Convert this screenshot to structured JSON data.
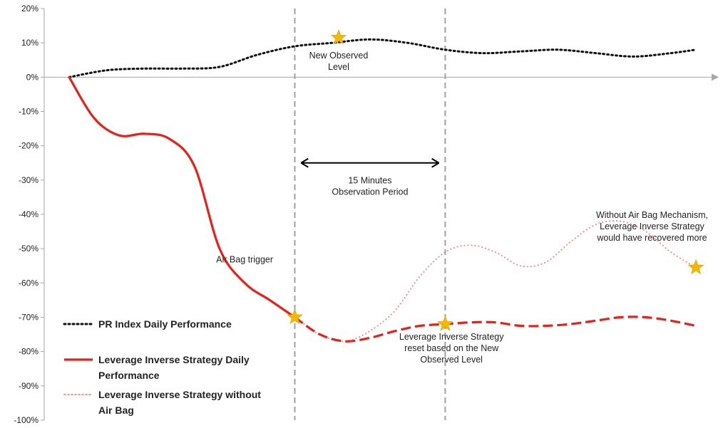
{
  "chart_data": {
    "type": "line",
    "ylim": [
      -100,
      20
    ],
    "y_ticks": [
      20,
      10,
      0,
      -10,
      -20,
      -30,
      -40,
      -50,
      -60,
      -70,
      -80,
      -90,
      -100
    ],
    "y_tick_labels": [
      "20%",
      "10%",
      "0%",
      "-10%",
      "-20%",
      "-30%",
      "-40%",
      "-50%",
      "-60%",
      "-70%",
      "-80%",
      "-90%",
      "-100%"
    ],
    "xlim": [
      0,
      100
    ],
    "grid": false,
    "legend_position": "bottom-left",
    "series": [
      {
        "name": "PR Index Daily Performance",
        "color": "#111111",
        "style": "dotted",
        "x": [
          0,
          6,
          12,
          18,
          24,
          30,
          36,
          42,
          48,
          54,
          60,
          66,
          72,
          78,
          84,
          90,
          96,
          100
        ],
        "y": [
          0,
          2,
          2.5,
          2.5,
          3,
          6.5,
          9,
          10,
          11,
          10,
          8,
          7,
          7.5,
          8,
          7,
          6,
          7,
          8
        ]
      },
      {
        "name": "Leverage Inverse Strategy Daily Performance",
        "color": "#e8201a",
        "style": "solid-then-dashed",
        "x": [
          0,
          4,
          8,
          12,
          16,
          20,
          24,
          28,
          32,
          36,
          40,
          44,
          48,
          52,
          56,
          60,
          64,
          68,
          72,
          76,
          80,
          84,
          88,
          92,
          96,
          100
        ],
        "y": [
          0,
          -12,
          -17,
          -16.5,
          -18,
          -26,
          -50,
          -60,
          -65,
          -70,
          -75,
          -77,
          -76,
          -74,
          -72.5,
          -72,
          -71.5,
          -71.5,
          -72.5,
          -72.5,
          -72,
          -71,
          -70,
          -70,
          -71,
          -72.5
        ]
      },
      {
        "name": "Leverage Inverse Strategy without Air Bag",
        "color": "#f08a8a",
        "style": "dotted",
        "x": [
          36,
          40,
          44,
          48,
          52,
          56,
          60,
          64,
          68,
          72,
          76,
          80,
          84,
          88,
          92,
          96,
          100
        ],
        "y": [
          -70,
          -75,
          -77,
          -74,
          -68,
          -58,
          -51,
          -49,
          -51,
          -55,
          -54,
          -48,
          -43,
          -42,
          -45,
          -51,
          -55.5
        ]
      }
    ],
    "markers": [
      {
        "x": 43,
        "y": 11.5,
        "shape": "star",
        "color": "#f5b800"
      },
      {
        "x": 36,
        "y": -70,
        "shape": "star",
        "color": "#f5b800"
      },
      {
        "x": 60,
        "y": -72,
        "shape": "star",
        "color": "#f5b800"
      },
      {
        "x": 100,
        "y": -55.5,
        "shape": "star",
        "color": "#f5b800"
      }
    ],
    "vertical_lines": [
      36,
      60
    ],
    "arrow": {
      "x_start": 37,
      "x_end": 59,
      "y": -25
    },
    "annotations": [
      {
        "lines": [
          "New Observed",
          "Level"
        ],
        "x": 43,
        "y": 5.5
      },
      {
        "lines": [
          "15 Minutes",
          "Observation Period"
        ],
        "x": 48,
        "y": -31
      },
      {
        "lines": [
          "Air Bag trigger"
        ],
        "x": 28,
        "y": -54
      },
      {
        "lines": [
          "Without Air Bag Mechanism,",
          "Leverage Inverse Strategy",
          "would have recovered more"
        ],
        "x": 93,
        "y": -41
      },
      {
        "lines": [
          "Leverage Inverse Strategy",
          "reset based on the New",
          "Observed Level"
        ],
        "x": 61,
        "y": -76.5
      }
    ],
    "legend": [
      {
        "label_lines": [
          "PR Index Daily Performance"
        ],
        "color": "#111111",
        "style": "dotted"
      },
      {
        "label_lines": [
          "Leverage Inverse Strategy Daily",
          "Performance"
        ],
        "color": "#e8201a",
        "style": "solid"
      },
      {
        "label_lines": [
          "Leverage Inverse Strategy without",
          "Air Bag"
        ],
        "color": "#f08a8a",
        "style": "dotted"
      }
    ]
  }
}
